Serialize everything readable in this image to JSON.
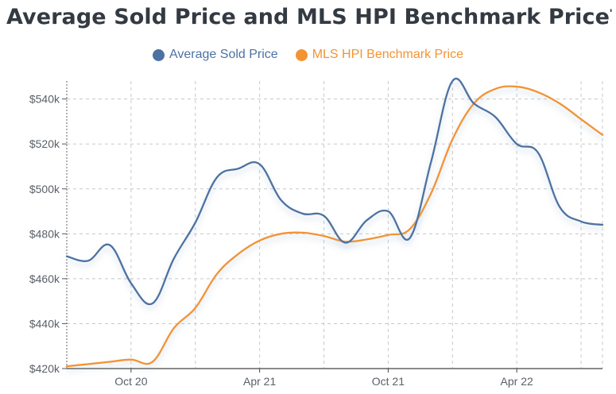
{
  "chart_data": {
    "type": "line",
    "title": "Average Sold Price and MLS HPI Benchmark Price",
    "x": [
      "2020-07",
      "2020-08",
      "2020-09",
      "2020-10",
      "2020-11",
      "2020-12",
      "2021-01",
      "2021-02",
      "2021-03",
      "2021-04",
      "2021-05",
      "2021-06",
      "2021-07",
      "2021-08",
      "2021-09",
      "2021-10",
      "2021-11",
      "2021-12",
      "2022-01",
      "2022-02",
      "2022-03",
      "2022-04",
      "2022-05",
      "2022-06",
      "2022-07",
      "2022-08"
    ],
    "x_tick_labels": [
      "Oct 20",
      "Apr 21",
      "Oct 21",
      "Apr 22"
    ],
    "y_tick_labels": [
      "$420k",
      "$440k",
      "$460k",
      "$480k",
      "$500k",
      "$520k",
      "$540k"
    ],
    "ylim": [
      420000,
      548000
    ],
    "xlabel": "",
    "ylabel": "",
    "legend_position": "top",
    "grid": true,
    "series": [
      {
        "name": "Average Sold Price",
        "color": "#4d72a2",
        "values": [
          470000,
          468000,
          475000,
          458000,
          449000,
          469000,
          485000,
          505000,
          509000,
          511000,
          495000,
          489000,
          488000,
          476000,
          486000,
          490000,
          478000,
          512000,
          548000,
          538000,
          532000,
          520000,
          516000,
          492000,
          485500,
          484000
        ]
      },
      {
        "name": "MLS HPI Benchmark Price",
        "color": "#f39332",
        "values": [
          421000,
          422000,
          423000,
          424000,
          423000,
          438000,
          447000,
          462000,
          471000,
          477000,
          480000,
          480500,
          479000,
          476500,
          477500,
          479500,
          482000,
          498000,
          522000,
          538000,
          544500,
          545500,
          543000,
          538000,
          531000,
          524000
        ]
      }
    ]
  }
}
